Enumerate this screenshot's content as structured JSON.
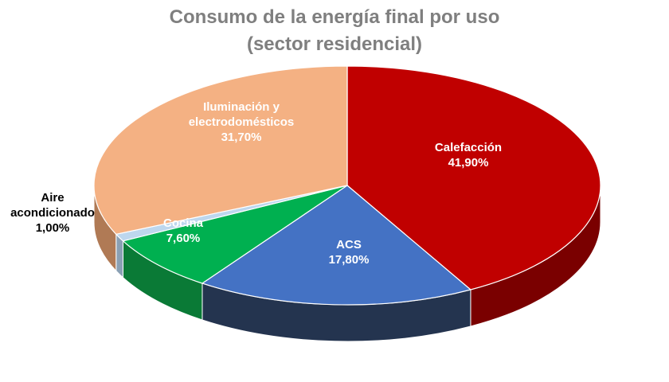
{
  "chart_data": {
    "type": "pie",
    "style": "3d",
    "title_lines": [
      "Consumo de la energía final por uso",
      "(sector residencial)"
    ],
    "slices": [
      {
        "name": "Calefacción",
        "value": 41.9,
        "label_lines": [
          "Calefacción",
          "41,90%"
        ],
        "color": "#c00000",
        "side_color": "#7a0000",
        "label_color": "#ffffff"
      },
      {
        "name": "ACS",
        "value": 17.8,
        "label_lines": [
          "ACS",
          "17,80%"
        ],
        "color": "#4472c4",
        "side_color": "#24344f",
        "label_color": "#ffffff"
      },
      {
        "name": "Cocina",
        "value": 7.6,
        "label_lines": [
          "Cocina",
          "7,60%"
        ],
        "color": "#00b050",
        "side_color": "#0a7a36",
        "label_color": "#ffffff"
      },
      {
        "name": "Aire acondicionado",
        "value": 1.0,
        "label_lines": [
          "Aire",
          "acondicionado",
          "1,00%"
        ],
        "color": "#bdd7ee",
        "side_color": "#8aa0b4",
        "label_color": "#000000"
      },
      {
        "name": "Iluminación y electrodomésticos",
        "value": 31.7,
        "label_lines": [
          "Iluminación y",
          "electrodomésticos",
          "31,70%"
        ],
        "color": "#f4b183",
        "side_color": "#b07a55",
        "label_color": "#ffffff"
      }
    ],
    "legend": "none",
    "start_angle_deg": 0,
    "direction": "clockwise"
  }
}
